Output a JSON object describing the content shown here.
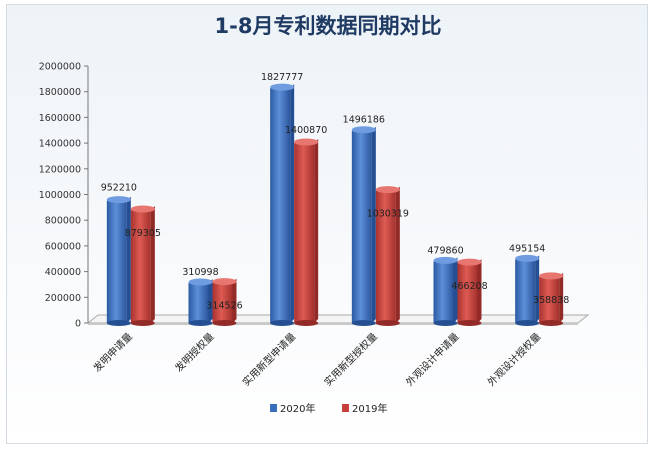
{
  "chart_data": {
    "type": "bar",
    "title": "1-8月专利数据同期对比",
    "categories": [
      "发明申请量",
      "发明授权量",
      "实用新型申请量",
      "实用新型授权量",
      "外观设计申请量",
      "外观设计授权量"
    ],
    "series": [
      {
        "name": "2020年",
        "color": "#3a6fc0",
        "values": [
          952210,
          310998,
          1827777,
          1496186,
          479860,
          495154
        ]
      },
      {
        "name": "2019年",
        "color": "#c8403b",
        "values": [
          879305,
          314526,
          1400870,
          1030319,
          466208,
          358838
        ]
      }
    ],
    "yticks": [
      "0",
      "200000",
      "400000",
      "600000",
      "800000",
      "1000000",
      "1200000",
      "1400000",
      "1600000",
      "1800000",
      "2000000"
    ],
    "ylim": [
      0,
      2000000
    ],
    "grid": false,
    "legend_position": "bottom"
  }
}
